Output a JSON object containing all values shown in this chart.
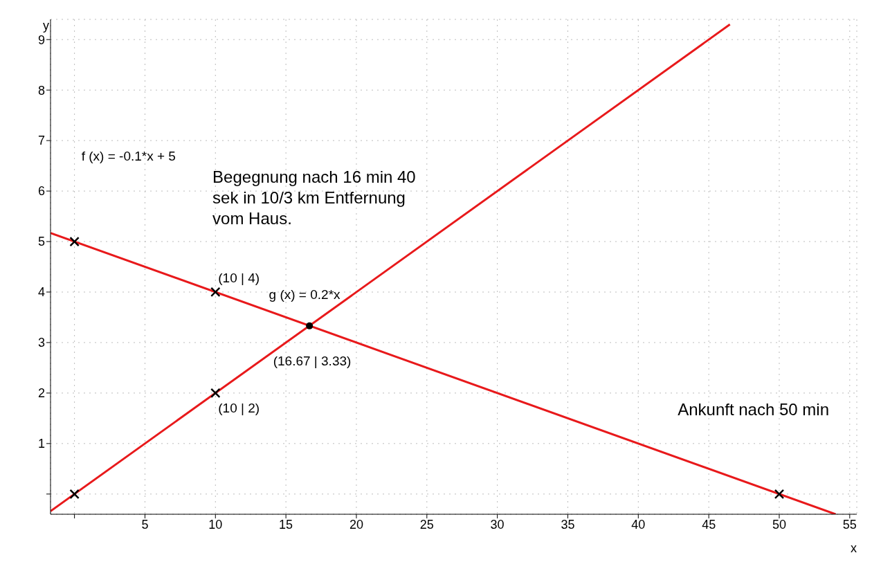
{
  "chart_data": {
    "type": "line",
    "xlabel": "x",
    "ylabel": "y",
    "xlim": [
      -1.7,
      55.5
    ],
    "ylim": [
      -0.4,
      9.4
    ],
    "xticks": [
      {
        "value": 0,
        "label": null
      },
      5,
      10,
      15,
      20,
      25,
      30,
      35,
      40,
      45,
      50,
      55
    ],
    "yticks": [
      {
        "value": 0,
        "label": null
      },
      1,
      2,
      3,
      4,
      5,
      6,
      7,
      8,
      9
    ],
    "grid": true,
    "line_style": "solid",
    "legend": false,
    "series": [
      {
        "color": "#e8191b",
        "x": [
          -1.7,
          54
        ],
        "values": [
          5.17,
          -0.4
        ]
      },
      {
        "color": "#e8191b",
        "x": [
          -1.7,
          46.5
        ],
        "values": [
          -0.34,
          9.3
        ]
      },
      {
        "type": "scatter",
        "color": "#000000",
        "marker": "cross",
        "x": [
          0,
          0,
          10,
          10,
          50
        ],
        "values": [
          0,
          5,
          4,
          2,
          0
        ]
      },
      {
        "type": "scatter",
        "color": "#000000",
        "marker": "circle",
        "x": [
          16.67
        ],
        "values": [
          3.33
        ]
      }
    ],
    "annotations": [
      "f (x) = -0.1*x + 5",
      "g (x) = 0.2*x",
      "(10 | 4)",
      "(10 | 2)",
      "(16.67 | 3.33)",
      "Begegnung nach 16 min 40 sek in 10/3 km Entfernung vom Haus.",
      "Ankunft nach 50 min"
    ]
  }
}
